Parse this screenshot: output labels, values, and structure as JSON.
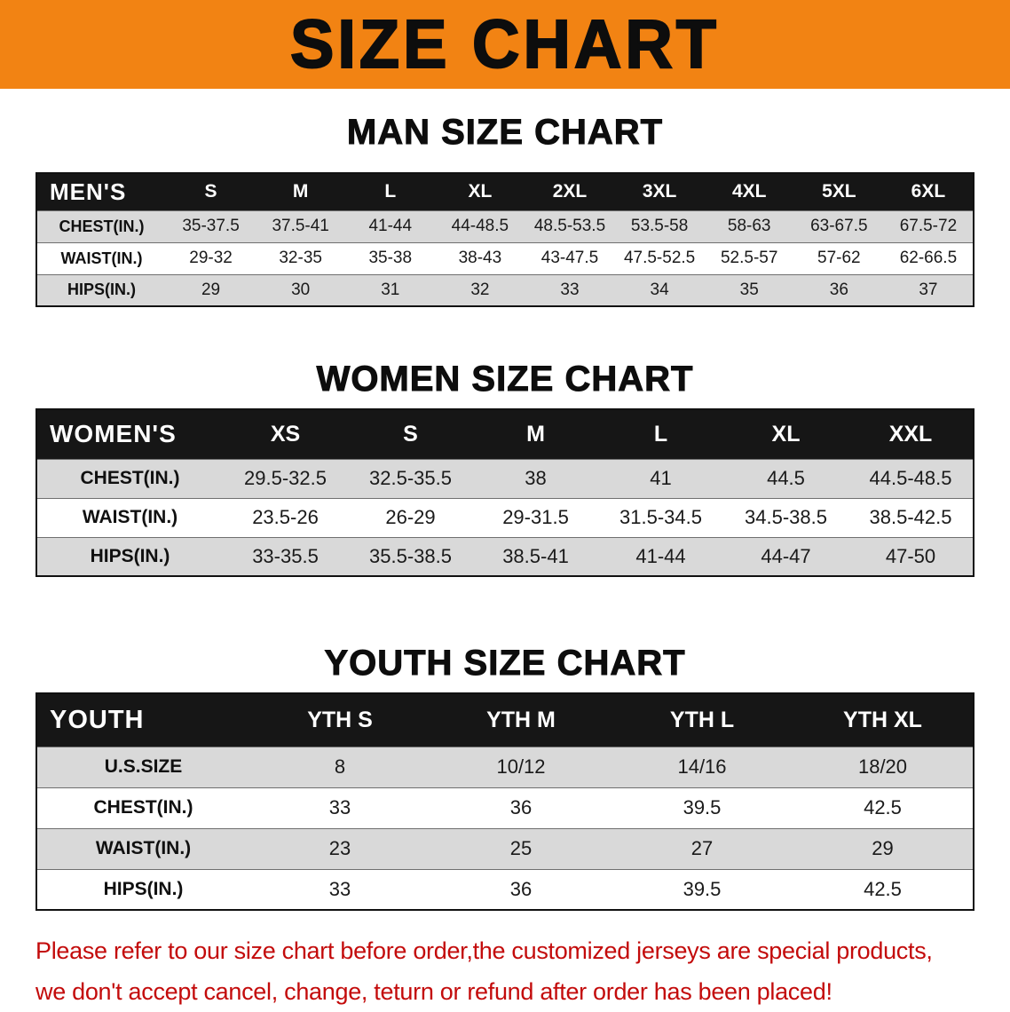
{
  "banner": {
    "title": "SIZE CHART"
  },
  "sections": [
    {
      "heading": "MAN SIZE CHART",
      "table": {
        "header_label": "MEN'S",
        "columns": [
          "S",
          "M",
          "L",
          "XL",
          "2XL",
          "3XL",
          "4XL",
          "5XL",
          "6XL"
        ],
        "rows": [
          {
            "label": "CHEST(IN.)",
            "values": [
              "35-37.5",
              "37.5-41",
              "41-44",
              "44-48.5",
              "48.5-53.5",
              "53.5-58",
              "58-63",
              "63-67.5",
              "67.5-72"
            ]
          },
          {
            "label": "WAIST(IN.)",
            "values": [
              "29-32",
              "32-35",
              "35-38",
              "38-43",
              "43-47.5",
              "47.5-52.5",
              "52.5-57",
              "57-62",
              "62-66.5"
            ]
          },
          {
            "label": "HIPS(IN.)",
            "values": [
              "29",
              "30",
              "31",
              "32",
              "33",
              "34",
              "35",
              "36",
              "37"
            ]
          }
        ]
      }
    },
    {
      "heading": "WOMEN SIZE CHART",
      "table": {
        "header_label": "WOMEN'S",
        "columns": [
          "XS",
          "S",
          "M",
          "L",
          "XL",
          "XXL"
        ],
        "rows": [
          {
            "label": "CHEST(IN.)",
            "values": [
              "29.5-32.5",
              "32.5-35.5",
              "38",
              "41",
              "44.5",
              "44.5-48.5"
            ]
          },
          {
            "label": "WAIST(IN.)",
            "values": [
              "23.5-26",
              "26-29",
              "29-31.5",
              "31.5-34.5",
              "34.5-38.5",
              "38.5-42.5"
            ]
          },
          {
            "label": "HIPS(IN.)",
            "values": [
              "33-35.5",
              "35.5-38.5",
              "38.5-41",
              "41-44",
              "44-47",
              "47-50"
            ]
          }
        ]
      }
    },
    {
      "heading": "YOUTH SIZE CHART",
      "table": {
        "header_label": "YOUTH",
        "columns": [
          "YTH S",
          "YTH M",
          "YTH L",
          "YTH XL"
        ],
        "rows": [
          {
            "label": "U.S.SIZE",
            "values": [
              "8",
              "10/12",
              "14/16",
              "18/20"
            ]
          },
          {
            "label": "CHEST(IN.)",
            "values": [
              "33",
              "36",
              "39.5",
              "42.5"
            ]
          },
          {
            "label": "WAIST(IN.)",
            "values": [
              "23",
              "25",
              "27",
              "29"
            ]
          },
          {
            "label": "HIPS(IN.)",
            "values": [
              "33",
              "36",
              "39.5",
              "42.5"
            ]
          }
        ]
      }
    }
  ],
  "footnote": {
    "line1": "Please refer to our size chart before order,the customized jerseys are special products,",
    "line2": "we don't accept cancel, change, teturn or refund after order has been placed!"
  },
  "colors": {
    "banner_bg": "#f28313",
    "header_bg": "#161616",
    "row_gray": "#d9d9d9",
    "note_red": "#c30b0b"
  }
}
